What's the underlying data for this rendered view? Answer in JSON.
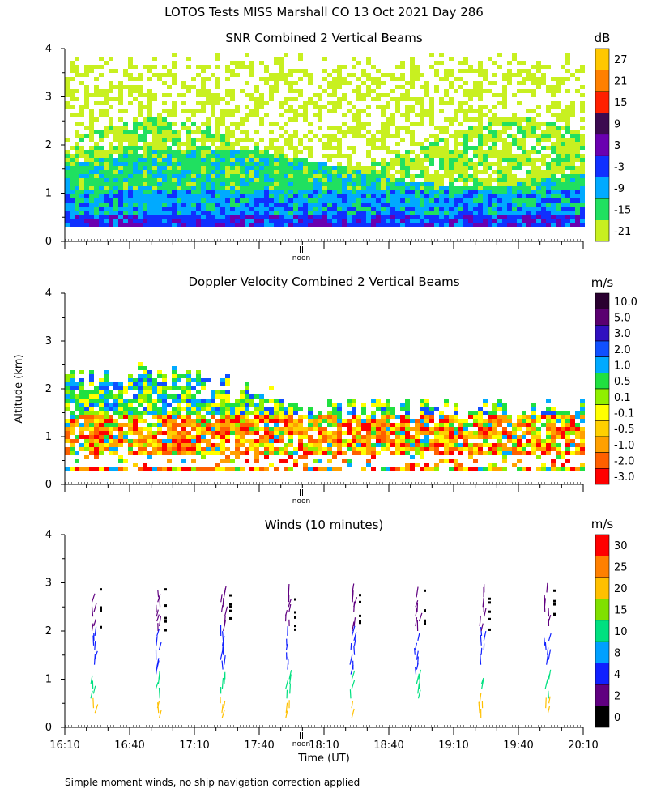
{
  "figure": {
    "title": "LOTOS Tests MISS Marshall CO  13 Oct 2021 Day 286",
    "ylabel": "Altitude (km)",
    "xlabel": "Time (UT)",
    "footnote": "Simple moment winds, no ship navigation correction applied",
    "noon_label": "noon",
    "noon_time": 12.0
  },
  "chart_data": [
    {
      "type": "heatmap",
      "title": "SNR Combined 2 Vertical Beams",
      "ylabel": "Altitude (km)",
      "xlim": [
        "16:10",
        "20:10"
      ],
      "ylim": [
        0,
        4
      ],
      "yticks": [
        "0",
        "1",
        "2",
        "3",
        "4"
      ],
      "colorbar": {
        "unit": "dB",
        "levels": [
          "27",
          "21",
          "15",
          "9",
          "3",
          "-3",
          "-9",
          "-15",
          "-21"
        ],
        "colors": [
          "#ffc800",
          "#ff8000",
          "#ff2000",
          "#3c0a50",
          "#6a00b0",
          "#1030ff",
          "#00aaff",
          "#20e060",
          "#c8f020"
        ]
      },
      "description_layers": [
        {
          "altitude_km": [
            0.2,
            0.6
          ],
          "level": "-3"
        },
        {
          "altitude_km": [
            0.6,
            1.3
          ],
          "level": "-9"
        },
        {
          "altitude_km": [
            1.3,
            1.9
          ],
          "level": "-15"
        },
        {
          "altitude_km": [
            1.9,
            3.8
          ],
          "level": "-21"
        }
      ]
    },
    {
      "type": "heatmap",
      "title": "Doppler Velocity Combined 2 Vertical Beams",
      "ylabel": "Altitude (km)",
      "xlim": [
        "16:10",
        "20:10"
      ],
      "ylim": [
        0,
        4
      ],
      "yticks": [
        "0",
        "1",
        "2",
        "3",
        "4"
      ],
      "colorbar": {
        "unit": "m/s",
        "levels": [
          "10.0",
          "5.0",
          "3.0",
          "2.0",
          "1.0",
          "0.5",
          "0.1",
          "-0.1",
          "-0.5",
          "-1.0",
          "-2.0",
          "-3.0"
        ],
        "colors": [
          "#2a0030",
          "#5a0070",
          "#3010c0",
          "#1050ff",
          "#00aaff",
          "#20e040",
          "#90f000",
          "#ffff00",
          "#ffd000",
          "#ffa000",
          "#ff6000",
          "#ff0000"
        ]
      }
    },
    {
      "type": "scatter",
      "title": "Winds (10 minutes)",
      "ylabel": "Altitude (km)",
      "xlabel": "Time (UT)",
      "xlim": [
        "16:10",
        "20:10"
      ],
      "ylim": [
        0,
        4
      ],
      "xticks": [
        "16:10",
        "16:40",
        "17:10",
        "17:40",
        "18:10",
        "18:40",
        "19:10",
        "19:40",
        "20:10"
      ],
      "yticks": [
        "0",
        "1",
        "2",
        "3",
        "4"
      ],
      "colorbar": {
        "unit": "m/s",
        "levels": [
          "30",
          "25",
          "20",
          "15",
          "10",
          "8",
          "4",
          "2",
          "0"
        ],
        "colors": [
          "#ff0000",
          "#ff8000",
          "#ffc000",
          "#80e000",
          "#00e080",
          "#00a0ff",
          "#1020ff",
          "#600080",
          "#000000"
        ]
      },
      "profile_times": [
        "16:25",
        "16:55",
        "17:25",
        "17:55",
        "18:25",
        "18:55",
        "19:25",
        "19:55"
      ],
      "barb_color_by_altitude_km": [
        {
          "range": [
            0.1,
            0.6
          ],
          "speed_level": "20"
        },
        {
          "range": [
            0.6,
            1.0
          ],
          "speed_level": "10"
        },
        {
          "range": [
            1.0,
            2.0
          ],
          "speed_level": "4"
        },
        {
          "range": [
            2.0,
            3.0
          ],
          "speed_level": "2"
        }
      ]
    }
  ]
}
